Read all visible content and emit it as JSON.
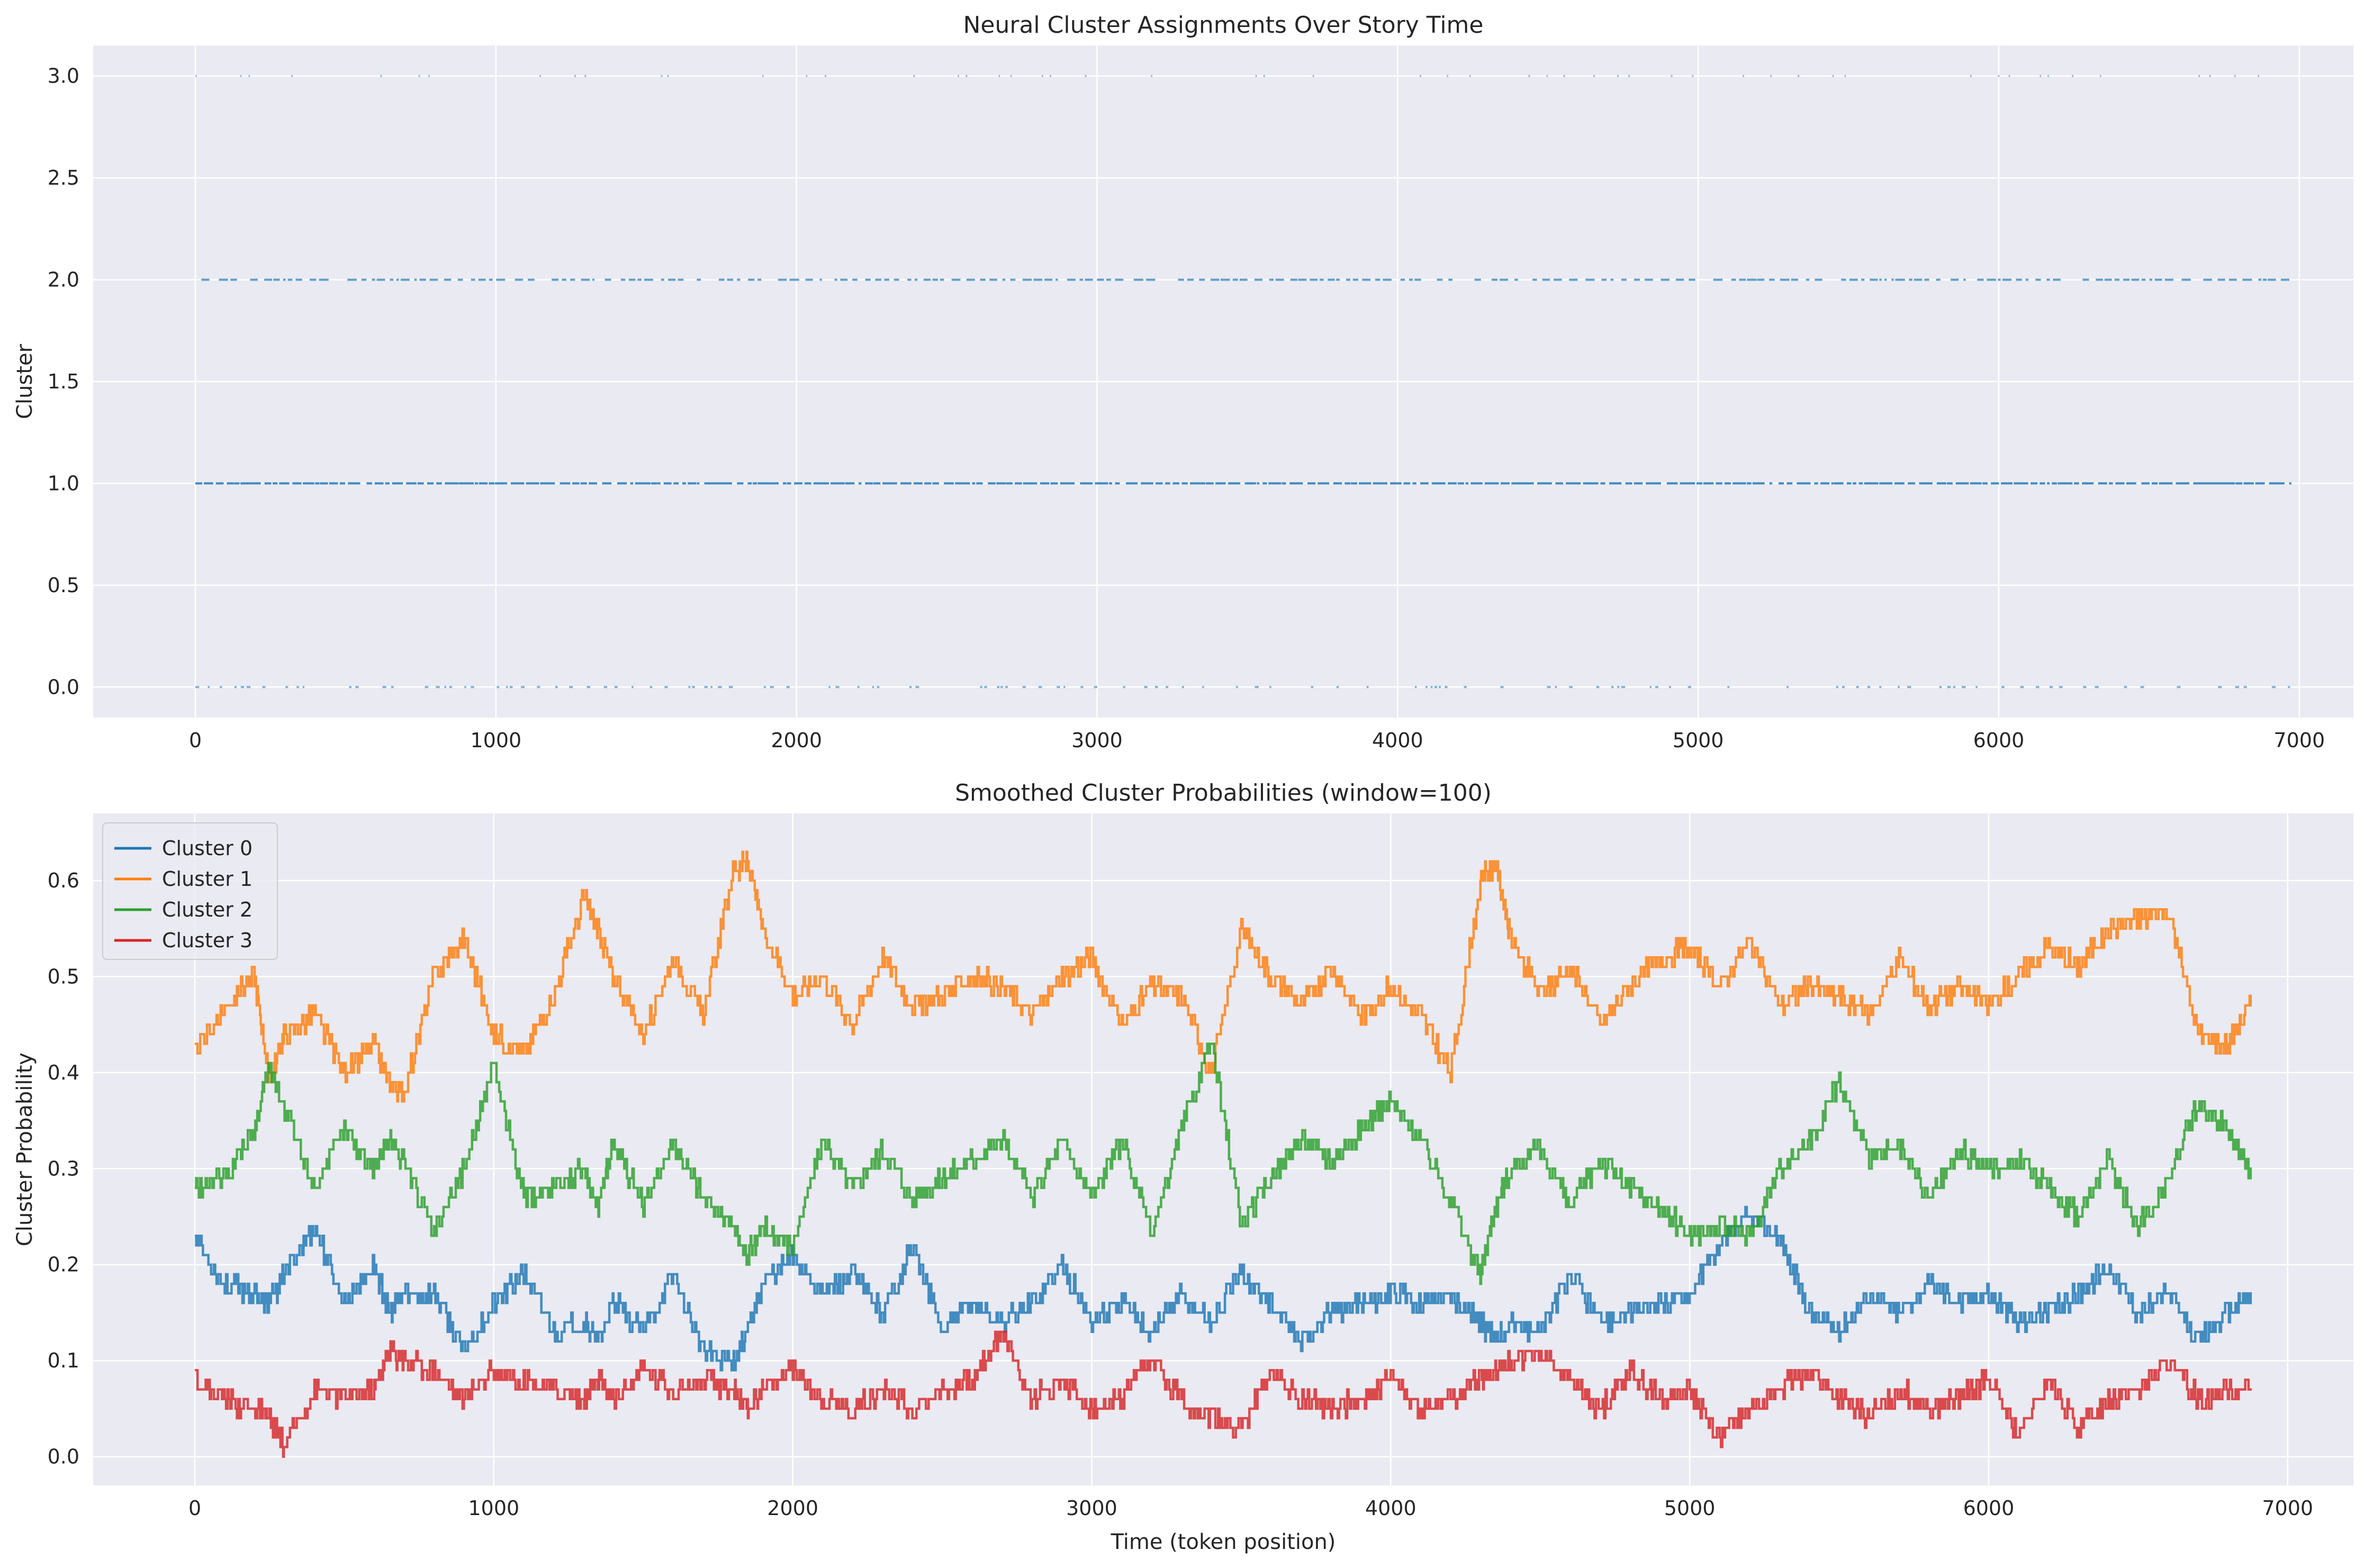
{
  "chart_data": [
    {
      "type": "scatter",
      "title": "Neural Cluster Assignments Over Story Time",
      "xlabel": "",
      "ylabel": "Cluster",
      "xlim": [
        -340,
        7180
      ],
      "ylim": [
        -0.15,
        3.15
      ],
      "xticks": [
        0,
        1000,
        2000,
        3000,
        4000,
        5000,
        6000,
        7000
      ],
      "yticks": [
        0.0,
        0.5,
        1.0,
        1.5,
        2.0,
        2.5,
        3.0
      ],
      "ytick_labels": [
        "0.0",
        "0.5",
        "1.0",
        "1.5",
        "2.0",
        "2.5",
        "3.0"
      ],
      "grid": true,
      "point_color": "#1f77b4",
      "series": [
        {
          "cluster": 0,
          "x_range": [
            0,
            6970
          ],
          "density": 0.35,
          "alpha": 0.55
        },
        {
          "cluster": 1,
          "x_range": [
            0,
            6970
          ],
          "density": 0.95,
          "alpha": 0.85
        },
        {
          "cluster": 2,
          "x_range": [
            20,
            6970
          ],
          "density": 0.7,
          "alpha": 0.7
        },
        {
          "cluster": 3,
          "x_range": [
            0,
            6970
          ],
          "density": 0.1,
          "alpha": 0.45
        }
      ]
    },
    {
      "type": "line",
      "title": "Smoothed Cluster Probabilities (window=100)",
      "xlabel": "Time (token position)",
      "ylabel": "Cluster Probability",
      "xlim": [
        -340,
        7220
      ],
      "ylim": [
        -0.03,
        0.67
      ],
      "xticks": [
        0,
        1000,
        2000,
        3000,
        4000,
        5000,
        6000,
        7000
      ],
      "yticks": [
        0.0,
        0.1,
        0.2,
        0.3,
        0.4,
        0.5,
        0.6
      ],
      "ytick_labels": [
        "0.0",
        "0.1",
        "0.2",
        "0.3",
        "0.4",
        "0.5",
        "0.6"
      ],
      "grid": true,
      "legend": "upper-left",
      "x": [
        0,
        100,
        200,
        250,
        300,
        400,
        500,
        600,
        650,
        700,
        800,
        900,
        1000,
        1100,
        1200,
        1300,
        1350,
        1400,
        1500,
        1600,
        1700,
        1800,
        1850,
        1900,
        2000,
        2100,
        2200,
        2300,
        2400,
        2500,
        2600,
        2700,
        2800,
        2900,
        3000,
        3100,
        3200,
        3300,
        3400,
        3500,
        3600,
        3700,
        3800,
        3900,
        4000,
        4100,
        4200,
        4300,
        4350,
        4400,
        4500,
        4600,
        4700,
        4800,
        4900,
        5000,
        5100,
        5200,
        5300,
        5400,
        5500,
        5600,
        5700,
        5800,
        5900,
        6000,
        6100,
        6200,
        6300,
        6400,
        6500,
        6600,
        6700,
        6800,
        6880
      ],
      "series": [
        {
          "name": "Cluster 0",
          "color": "#1f77b4",
          "values": [
            0.23,
            0.18,
            0.17,
            0.16,
            0.19,
            0.24,
            0.16,
            0.2,
            0.15,
            0.17,
            0.17,
            0.11,
            0.16,
            0.19,
            0.13,
            0.14,
            0.12,
            0.16,
            0.13,
            0.19,
            0.11,
            0.1,
            0.13,
            0.18,
            0.21,
            0.17,
            0.19,
            0.15,
            0.22,
            0.13,
            0.16,
            0.14,
            0.16,
            0.2,
            0.14,
            0.16,
            0.13,
            0.17,
            0.14,
            0.19,
            0.16,
            0.12,
            0.15,
            0.16,
            0.17,
            0.16,
            0.17,
            0.14,
            0.12,
            0.14,
            0.13,
            0.19,
            0.14,
            0.15,
            0.16,
            0.17,
            0.22,
            0.25,
            0.23,
            0.15,
            0.13,
            0.17,
            0.15,
            0.18,
            0.16,
            0.17,
            0.14,
            0.15,
            0.17,
            0.2,
            0.15,
            0.17,
            0.12,
            0.15,
            0.17
          ]
        },
        {
          "name": "Cluster 1",
          "color": "#ff7f0e",
          "values": [
            0.42,
            0.47,
            0.5,
            0.39,
            0.44,
            0.46,
            0.4,
            0.43,
            0.39,
            0.38,
            0.5,
            0.54,
            0.44,
            0.42,
            0.48,
            0.58,
            0.55,
            0.5,
            0.44,
            0.52,
            0.46,
            0.61,
            0.62,
            0.55,
            0.48,
            0.5,
            0.45,
            0.52,
            0.47,
            0.48,
            0.5,
            0.49,
            0.46,
            0.5,
            0.52,
            0.45,
            0.49,
            0.48,
            0.4,
            0.55,
            0.5,
            0.47,
            0.51,
            0.46,
            0.49,
            0.46,
            0.4,
            0.6,
            0.62,
            0.54,
            0.48,
            0.51,
            0.45,
            0.49,
            0.52,
            0.53,
            0.49,
            0.54,
            0.47,
            0.49,
            0.48,
            0.46,
            0.52,
            0.47,
            0.49,
            0.47,
            0.5,
            0.53,
            0.51,
            0.55,
            0.56,
            0.57,
            0.44,
            0.43,
            0.47
          ]
        },
        {
          "name": "Cluster 2",
          "color": "#2ca02c",
          "values": [
            0.28,
            0.29,
            0.34,
            0.41,
            0.36,
            0.28,
            0.34,
            0.3,
            0.33,
            0.31,
            0.23,
            0.3,
            0.41,
            0.27,
            0.28,
            0.3,
            0.26,
            0.33,
            0.26,
            0.33,
            0.27,
            0.24,
            0.21,
            0.24,
            0.22,
            0.33,
            0.28,
            0.32,
            0.27,
            0.29,
            0.31,
            0.33,
            0.27,
            0.33,
            0.27,
            0.33,
            0.23,
            0.34,
            0.43,
            0.24,
            0.29,
            0.33,
            0.31,
            0.34,
            0.37,
            0.33,
            0.27,
            0.19,
            0.26,
            0.3,
            0.32,
            0.26,
            0.31,
            0.28,
            0.26,
            0.23,
            0.24,
            0.23,
            0.3,
            0.33,
            0.39,
            0.31,
            0.32,
            0.27,
            0.32,
            0.3,
            0.31,
            0.28,
            0.25,
            0.31,
            0.24,
            0.29,
            0.37,
            0.34,
            0.29
          ]
        },
        {
          "name": "Cluster 3",
          "color": "#d62728",
          "values": [
            0.08,
            0.06,
            0.05,
            0.04,
            0.01,
            0.07,
            0.06,
            0.07,
            0.11,
            0.1,
            0.09,
            0.06,
            0.09,
            0.08,
            0.07,
            0.06,
            0.08,
            0.06,
            0.09,
            0.07,
            0.08,
            0.07,
            0.05,
            0.07,
            0.09,
            0.06,
            0.05,
            0.07,
            0.05,
            0.07,
            0.08,
            0.13,
            0.06,
            0.08,
            0.05,
            0.06,
            0.1,
            0.06,
            0.04,
            0.03,
            0.09,
            0.06,
            0.05,
            0.06,
            0.08,
            0.05,
            0.06,
            0.08,
            0.09,
            0.1,
            0.11,
            0.08,
            0.05,
            0.09,
            0.06,
            0.07,
            0.02,
            0.05,
            0.07,
            0.09,
            0.06,
            0.04,
            0.07,
            0.05,
            0.06,
            0.08,
            0.02,
            0.08,
            0.03,
            0.06,
            0.07,
            0.1,
            0.06,
            0.07,
            0.07
          ]
        }
      ]
    }
  ],
  "colors": {
    "axes_bg": "#eaeaf2",
    "grid": "#ffffff",
    "text": "#262626"
  }
}
